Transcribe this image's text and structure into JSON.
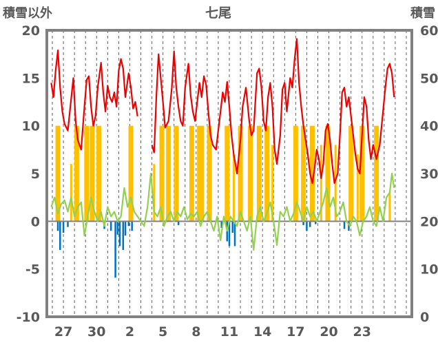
{
  "chart_data": {
    "type": "line",
    "title": "七尾",
    "ylabel_left": "積雪以外",
    "ylabel_right": "積雪",
    "y_left_range": [
      -10,
      20
    ],
    "y_right_range": [
      0,
      60
    ],
    "y_left_ticks": [
      "20",
      "15",
      "10",
      "5",
      "0",
      "-5",
      "-10"
    ],
    "y_right_ticks": [
      "60",
      "50",
      "40",
      "30",
      "20",
      "10",
      "0"
    ],
    "x_tick_labels": [
      "27",
      "30",
      "2",
      "5",
      "8",
      "11",
      "14",
      "17",
      "20",
      "23"
    ],
    "x_day_range": [
      25.5,
      58.5
    ],
    "x_tick_days": [
      27,
      30,
      33,
      36,
      39,
      42,
      45,
      48,
      51,
      54
    ],
    "grid": "dashed vertical daily",
    "colors": {
      "temperature": "#ee0000",
      "precipitation": "#ffc000",
      "wind": "#92d050",
      "negative_bars": "#0070c0",
      "snow_depth": "#7030a0",
      "axis": "#808080"
    },
    "series": [
      {
        "key": "temperature",
        "points": [
          [
            25.9,
            14.5
          ],
          [
            26.1,
            13.0
          ],
          [
            26.3,
            15.8
          ],
          [
            26.5,
            17.9
          ],
          [
            26.7,
            14.0
          ],
          [
            26.9,
            11.5
          ],
          [
            27.1,
            10.2
          ],
          [
            27.4,
            9.5
          ],
          [
            27.7,
            12.8
          ],
          [
            27.9,
            15.0
          ],
          [
            28.1,
            10.5
          ],
          [
            28.3,
            8.5
          ],
          [
            28.6,
            7.5
          ],
          [
            28.9,
            12.0
          ],
          [
            29.1,
            14.8
          ],
          [
            29.3,
            15.2
          ],
          [
            29.5,
            12.0
          ],
          [
            29.7,
            10.0
          ],
          [
            29.9,
            11.0
          ],
          [
            30.1,
            14.0
          ],
          [
            30.4,
            16.6
          ],
          [
            30.6,
            13.5
          ],
          [
            30.8,
            11.5
          ],
          [
            31.0,
            14.2
          ],
          [
            31.2,
            13.0
          ],
          [
            31.4,
            12.5
          ],
          [
            31.6,
            13.5
          ],
          [
            31.8,
            12.0
          ],
          [
            32.0,
            15.8
          ],
          [
            32.2,
            17.0
          ],
          [
            32.4,
            16.0
          ],
          [
            32.6,
            13.0
          ],
          [
            32.9,
            15.5
          ],
          [
            33.1,
            14.0
          ],
          [
            33.3,
            11.8
          ],
          [
            33.5,
            12.5
          ],
          [
            33.7,
            11.0
          ]
        ],
        "points2": [
          [
            35.0,
            8.0
          ],
          [
            35.2,
            7.2
          ],
          [
            35.4,
            13.0
          ],
          [
            35.6,
            17.5
          ],
          [
            35.8,
            15.0
          ],
          [
            36.0,
            12.5
          ],
          [
            36.2,
            9.8
          ],
          [
            36.5,
            10.5
          ],
          [
            36.8,
            14.0
          ],
          [
            37.0,
            17.8
          ],
          [
            37.2,
            14.0
          ],
          [
            37.4,
            12.0
          ],
          [
            37.6,
            10.5
          ],
          [
            37.8,
            10.0
          ],
          [
            38.0,
            14.0
          ],
          [
            38.3,
            16.5
          ],
          [
            38.5,
            13.2
          ],
          [
            38.7,
            11.5
          ],
          [
            38.9,
            10.5
          ],
          [
            39.1,
            12.5
          ],
          [
            39.3,
            14.5
          ],
          [
            39.5,
            13.0
          ],
          [
            39.7,
            15.2
          ],
          [
            39.9,
            14.3
          ],
          [
            40.1,
            11.5
          ],
          [
            40.3,
            9.0
          ],
          [
            40.5,
            8.0
          ],
          [
            40.8,
            7.5
          ],
          [
            41.0,
            9.5
          ],
          [
            41.2,
            11.5
          ],
          [
            41.4,
            13.5
          ],
          [
            41.6,
            12.5
          ],
          [
            41.8,
            14.6
          ],
          [
            42.0,
            12.0
          ],
          [
            42.2,
            9.0
          ],
          [
            42.4,
            7.0
          ],
          [
            42.7,
            5.0
          ],
          [
            43.0,
            8.5
          ],
          [
            43.2,
            12.0
          ],
          [
            43.5,
            14.0
          ],
          [
            43.8,
            10.5
          ],
          [
            44.0,
            9.0
          ],
          [
            44.2,
            9.5
          ],
          [
            44.5,
            15.5
          ],
          [
            44.7,
            16.0
          ],
          [
            44.9,
            14.0
          ],
          [
            45.1,
            10.5
          ],
          [
            45.3,
            9.5
          ],
          [
            45.5,
            13.0
          ],
          [
            45.7,
            14.5
          ],
          [
            45.9,
            12.0
          ],
          [
            46.1,
            7.5
          ],
          [
            46.3,
            6.0
          ],
          [
            46.6,
            9.0
          ],
          [
            46.8,
            13.8
          ],
          [
            47.0,
            14.5
          ],
          [
            47.2,
            11.5
          ],
          [
            47.5,
            15.0
          ],
          [
            47.7,
            14.0
          ],
          [
            47.9,
            17.0
          ],
          [
            48.1,
            19.1
          ],
          [
            48.3,
            14.5
          ],
          [
            48.5,
            12.0
          ],
          [
            48.7,
            10.0
          ],
          [
            48.9,
            8.5
          ],
          [
            49.1,
            7.0
          ],
          [
            49.3,
            5.0
          ],
          [
            49.5,
            4.0
          ],
          [
            49.7,
            5.5
          ],
          [
            49.9,
            7.5
          ],
          [
            50.1,
            6.5
          ],
          [
            50.3,
            4.5
          ],
          [
            50.5,
            6.0
          ],
          [
            50.7,
            9.5
          ],
          [
            50.9,
            10.2
          ],
          [
            51.1,
            8.5
          ],
          [
            51.3,
            6.0
          ],
          [
            51.5,
            4.0
          ],
          [
            51.8,
            5.0
          ],
          [
            52.0,
            9.0
          ],
          [
            52.2,
            13.5
          ],
          [
            52.4,
            14.0
          ],
          [
            52.6,
            12.0
          ],
          [
            52.8,
            13.0
          ],
          [
            53.0,
            11.0
          ],
          [
            53.2,
            9.0
          ],
          [
            53.4,
            7.0
          ],
          [
            53.6,
            5.5
          ],
          [
            53.8,
            5.0
          ],
          [
            54.0,
            9.0
          ],
          [
            54.2,
            13.0
          ],
          [
            54.4,
            12.0
          ],
          [
            54.6,
            8.5
          ],
          [
            54.8,
            6.5
          ],
          [
            55.0,
            8.0
          ],
          [
            55.3,
            6.5
          ],
          [
            55.6,
            8.0
          ],
          [
            55.9,
            11.5
          ],
          [
            56.1,
            14.0
          ],
          [
            56.3,
            16.0
          ],
          [
            56.5,
            16.5
          ],
          [
            56.7,
            15.5
          ],
          [
            56.9,
            13.0
          ]
        ]
      },
      {
        "key": "wind",
        "points": [
          [
            25.9,
            1.5
          ],
          [
            26.2,
            2.5
          ],
          [
            26.5,
            0.8
          ],
          [
            26.8,
            1.8
          ],
          [
            27.1,
            2.2
          ],
          [
            27.4,
            1.0
          ],
          [
            27.7,
            2.5
          ],
          [
            28.0,
            0.5
          ],
          [
            28.3,
            1.5
          ],
          [
            28.6,
            2.0
          ],
          [
            28.9,
            -1.5
          ],
          [
            29.2,
            0.5
          ],
          [
            29.5,
            2.5
          ],
          [
            29.8,
            1.0
          ],
          [
            30.1,
            0.0
          ],
          [
            30.4,
            1.0
          ],
          [
            30.7,
            -0.5
          ],
          [
            31.0,
            1.5
          ],
          [
            31.3,
            0.5
          ],
          [
            31.6,
            1.0
          ],
          [
            31.9,
            0.0
          ],
          [
            32.2,
            0.5
          ],
          [
            32.5,
            3.5
          ],
          [
            32.8,
            1.5
          ],
          [
            33.1,
            2.5
          ],
          [
            33.4,
            1.0
          ],
          [
            33.7,
            0.5
          ],
          [
            34.0,
            0.0
          ],
          [
            34.3,
            -0.5
          ],
          [
            34.6,
            1.5
          ],
          [
            34.9,
            5.0
          ],
          [
            35.2,
            1.0
          ],
          [
            35.5,
            0.5
          ],
          [
            35.8,
            1.5
          ],
          [
            36.1,
            -0.5
          ],
          [
            36.4,
            0.5
          ],
          [
            36.7,
            1.0
          ],
          [
            37.0,
            0.0
          ],
          [
            37.3,
            1.0
          ],
          [
            37.6,
            0.5
          ],
          [
            37.9,
            1.5
          ],
          [
            38.2,
            0.2
          ],
          [
            38.5,
            0.8
          ],
          [
            38.8,
            0.5
          ],
          [
            39.1,
            1.0
          ],
          [
            39.4,
            -0.5
          ],
          [
            39.7,
            0.5
          ],
          [
            40.0,
            1.0
          ],
          [
            40.3,
            0.0
          ],
          [
            40.6,
            -1.0
          ],
          [
            40.9,
            0.5
          ],
          [
            41.2,
            -2.0
          ],
          [
            41.5,
            0.5
          ],
          [
            41.8,
            -1.0
          ],
          [
            42.1,
            0.5
          ],
          [
            42.4,
            0.0
          ],
          [
            42.7,
            -0.5
          ],
          [
            43.0,
            1.0
          ],
          [
            43.3,
            0.0
          ],
          [
            43.6,
            -1.0
          ],
          [
            43.9,
            0.5
          ],
          [
            44.2,
            -3.0
          ],
          [
            44.5,
            0.5
          ],
          [
            44.8,
            1.5
          ],
          [
            45.1,
            0.0
          ],
          [
            45.4,
            0.8
          ],
          [
            45.7,
            2.0
          ],
          [
            46.0,
            0.0
          ],
          [
            46.3,
            -2.5
          ],
          [
            46.6,
            1.0
          ],
          [
            46.9,
            0.5
          ],
          [
            47.2,
            1.5
          ],
          [
            47.5,
            0.0
          ],
          [
            47.8,
            0.8
          ],
          [
            48.1,
            2.0
          ],
          [
            48.4,
            1.0
          ],
          [
            48.7,
            0.0
          ],
          [
            49.0,
            1.5
          ],
          [
            49.3,
            0.5
          ],
          [
            49.6,
            1.0
          ],
          [
            49.9,
            0.0
          ],
          [
            50.2,
            1.0
          ],
          [
            50.5,
            2.0
          ],
          [
            50.8,
            3.5
          ],
          [
            51.1,
            1.5
          ],
          [
            51.4,
            2.5
          ],
          [
            51.7,
            0.5
          ],
          [
            52.0,
            1.0
          ],
          [
            52.3,
            2.0
          ],
          [
            52.6,
            0.0
          ],
          [
            52.9,
            -0.5
          ],
          [
            53.2,
            0.5
          ],
          [
            53.5,
            0.0
          ],
          [
            53.8,
            -1.5
          ],
          [
            54.1,
            0.0
          ],
          [
            54.4,
            0.5
          ],
          [
            54.7,
            1.5
          ],
          [
            55.0,
            0.0
          ],
          [
            55.3,
            -0.5
          ],
          [
            55.6,
            1.5
          ],
          [
            55.9,
            0.0
          ],
          [
            56.2,
            2.5
          ],
          [
            56.5,
            3.0
          ],
          [
            56.7,
            5.0
          ],
          [
            56.9,
            3.5
          ]
        ]
      },
      {
        "key": "precipitation",
        "bars": [
          [
            26.4,
            8
          ],
          [
            26.5,
            10
          ],
          [
            27.7,
            6
          ],
          [
            28.2,
            10
          ],
          [
            29.1,
            10
          ],
          [
            29.6,
            10
          ],
          [
            30.2,
            10
          ],
          [
            33.1,
            10
          ],
          [
            35.2,
            6
          ],
          [
            35.9,
            10
          ],
          [
            36.5,
            10
          ],
          [
            37.2,
            10
          ],
          [
            38.6,
            10
          ],
          [
            39.3,
            10
          ],
          [
            39.5,
            10
          ],
          [
            40.2,
            10
          ],
          [
            41.8,
            10
          ],
          [
            42.4,
            7
          ],
          [
            43.0,
            10
          ],
          [
            43.9,
            10
          ],
          [
            44.7,
            10
          ],
          [
            45.4,
            10
          ],
          [
            45.9,
            8
          ],
          [
            48.0,
            10
          ],
          [
            48.7,
            10
          ],
          [
            49.5,
            10
          ],
          [
            50.3,
            8
          ],
          [
            50.9,
            10
          ],
          [
            51.6,
            8
          ],
          [
            53.0,
            10
          ],
          [
            53.6,
            7
          ],
          [
            54.0,
            10
          ],
          [
            55.3,
            10
          ],
          [
            56.5,
            3
          ]
        ]
      },
      {
        "key": "negative_bars",
        "bars": [
          [
            26.5,
            -1.0
          ],
          [
            26.7,
            -3.0
          ],
          [
            27.0,
            -1.2
          ],
          [
            27.4,
            -0.6
          ],
          [
            30.7,
            -0.8
          ],
          [
            31.3,
            -1.0
          ],
          [
            31.7,
            -5.9
          ],
          [
            31.9,
            -1.4
          ],
          [
            32.1,
            -2.6
          ],
          [
            32.4,
            -3.0
          ],
          [
            32.6,
            -1.5
          ],
          [
            32.9,
            -0.5
          ],
          [
            33.2,
            -1.0
          ],
          [
            37.4,
            -0.4
          ],
          [
            41.3,
            -0.7
          ],
          [
            41.8,
            -2.1
          ],
          [
            42.0,
            -2.6
          ],
          [
            42.3,
            -1.2
          ],
          [
            42.5,
            -2.6
          ],
          [
            48.7,
            -0.4
          ],
          [
            49.0,
            -1.0
          ],
          [
            49.3,
            -0.6
          ],
          [
            49.8,
            -0.3
          ],
          [
            52.4,
            -0.8
          ],
          [
            52.8,
            -1.0
          ]
        ]
      },
      {
        "key": "snow_depth",
        "points": [
          [
            36.0,
            0.0
          ],
          [
            47.5,
            0.0
          ]
        ],
        "points2": [
          [
            48.3,
            0.0
          ],
          [
            56.8,
            0.0
          ]
        ]
      }
    ]
  }
}
